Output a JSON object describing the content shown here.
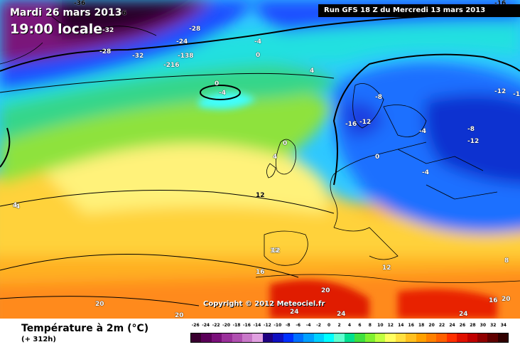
{
  "header": {
    "date": "Mardi 26 mars 2013",
    "time": "19:00 locale",
    "run": "Run GFS 18 Z du Mercredi 13 mars 2013"
  },
  "copyright": "Copyright © 2012 Meteociel.fr",
  "footer": {
    "title": "Température à 2m (°C)",
    "lead": "(+ 312h)"
  },
  "legend": {
    "ticks": [
      "-26",
      "-24",
      "-22",
      "-20",
      "-18",
      "-16",
      "-14",
      "-12",
      "-10",
      "-8",
      "-6",
      "-4",
      "-2",
      "0",
      "2",
      "4",
      "6",
      "8",
      "10",
      "12",
      "14",
      "16",
      "18",
      "20",
      "22",
      "24",
      "26",
      "28",
      "30",
      "32",
      "34"
    ],
    "colors": [
      "#3a0030",
      "#5a0058",
      "#7a107a",
      "#9a309a",
      "#b050b0",
      "#c878c8",
      "#e0a0e0",
      "#200080",
      "#1010c0",
      "#0030ff",
      "#0070ff",
      "#00a0ff",
      "#00d0ff",
      "#00ffff",
      "#60ffd0",
      "#00e090",
      "#40e040",
      "#80f030",
      "#c0ff40",
      "#ffff60",
      "#ffe040",
      "#ffc020",
      "#ffa000",
      "#ff8000",
      "#ff6000",
      "#ff3000",
      "#e01000",
      "#c00000",
      "#900000",
      "#600000",
      "#300000"
    ]
  },
  "isotherm_labels": [
    "-36",
    "-36",
    "-32",
    "-28",
    "-28",
    "-24",
    "-32",
    "-138",
    "-216",
    "-4",
    "0",
    "0",
    "4",
    "-4",
    "0",
    "-16",
    "-12",
    "-8",
    "-4",
    "-8",
    "-12",
    "-12",
    "-4",
    "0",
    "-4",
    "4",
    "12",
    "12",
    "12",
    "16",
    "20",
    "24",
    "24",
    "20",
    "20",
    "24",
    "16",
    "20",
    "8",
    "12",
    "-16",
    "-1",
    "4"
  ]
}
